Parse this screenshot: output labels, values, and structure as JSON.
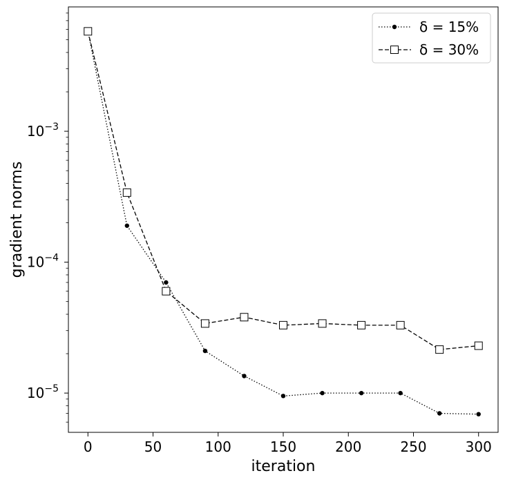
{
  "chart_data": {
    "type": "line",
    "title": "",
    "xlabel": "iteration",
    "ylabel": "gradient norms",
    "xlim": [
      -15,
      315
    ],
    "ylim_log10": [
      -5.3,
      -2.05
    ],
    "y_scale": "log",
    "x_ticks": [
      0,
      50,
      100,
      150,
      200,
      250,
      300
    ],
    "x_tick_labels": [
      "0",
      "50",
      "100",
      "150",
      "200",
      "250",
      "300"
    ],
    "y_ticks": [
      0.001,
      0.0001,
      1e-05
    ],
    "y_tick_labels": [
      {
        "base": "10",
        "exp": "−3"
      },
      {
        "base": "10",
        "exp": "−4"
      },
      {
        "base": "10",
        "exp": "−5"
      }
    ],
    "grid": false,
    "legend_position": "top-right",
    "series": [
      {
        "name": "δ = 15%",
        "line_style": "dotted",
        "marker": "filled-circle",
        "color": "#000000",
        "x": [
          0,
          30,
          60,
          90,
          120,
          150,
          180,
          210,
          240,
          270,
          300
        ],
        "values": [
          0.0058,
          0.00019,
          7e-05,
          2.1e-05,
          1.35e-05,
          9.5e-06,
          1e-05,
          1e-05,
          1e-05,
          7e-06,
          6.9e-06
        ]
      },
      {
        "name": "δ = 30%",
        "line_style": "dashed",
        "marker": "open-square",
        "color": "#000000",
        "x": [
          0,
          30,
          60,
          90,
          120,
          150,
          180,
          210,
          240,
          270,
          300
        ],
        "values": [
          0.0058,
          0.00034,
          6e-05,
          3.4e-05,
          3.8e-05,
          3.3e-05,
          3.4e-05,
          3.3e-05,
          3.3e-05,
          2.15e-05,
          2.3e-05
        ]
      }
    ]
  }
}
